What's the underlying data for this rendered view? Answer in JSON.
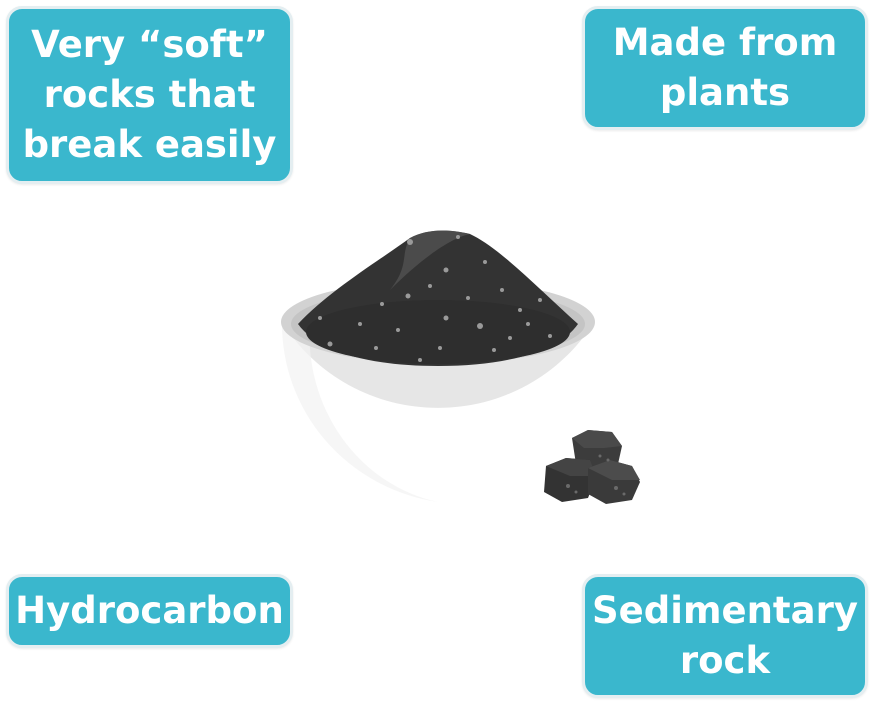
{
  "labels": {
    "soft_rocks": "Very “soft”\nrocks that\nbreak easily",
    "plants": "Made from\nplants",
    "hydrocarbon": "Hydrocarbon",
    "sedimentary": "Sedimentary\nrock"
  },
  "colors": {
    "box_fill": "#3ab7cd",
    "box_border": "#e4eef1",
    "box_text": "#ffffff",
    "bowl": "#e6e6e6",
    "bowl_rim": "#d0d0d0",
    "coal": "#3a3a3a",
    "coal_dark": "#2b2b2b",
    "coal_speck": "#9a9a9a"
  },
  "icons": {
    "bowl": "bowl-icon",
    "coal_pile": "coal-powder-pile-icon",
    "coal_lumps": "coal-lumps-icon"
  }
}
